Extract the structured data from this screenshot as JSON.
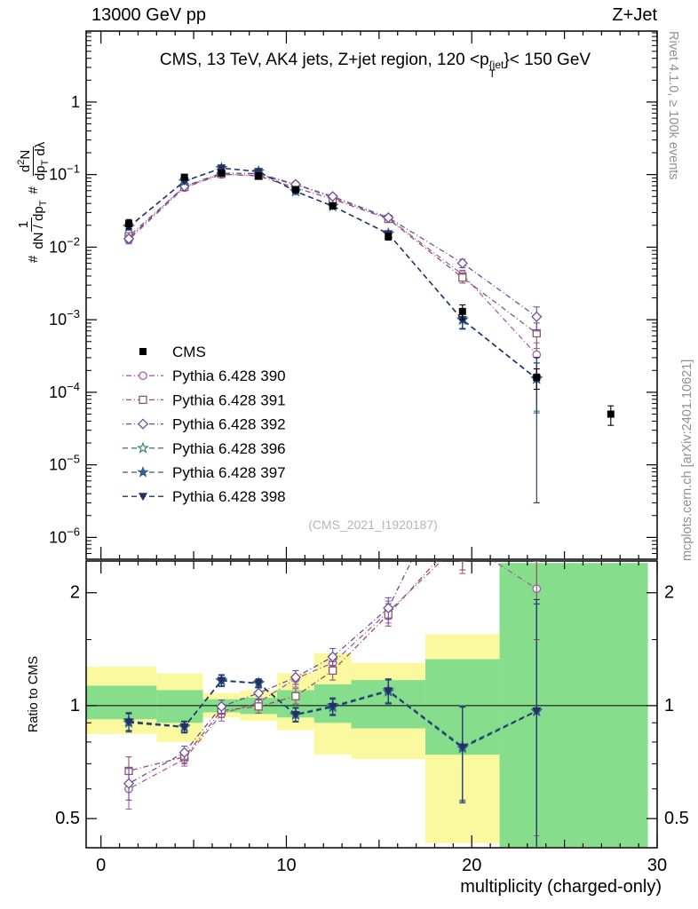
{
  "header": {
    "left": "13000 GeV pp",
    "right": "Z+Jet"
  },
  "labels": {
    "title_pre": "CMS, 13 TeV, AK4 jets, Z+jet region, 120 <p",
    "title_sup": "{jet",
    "title_sub": "T",
    "title_post": "}< 150 GeV",
    "y_hash1": "#",
    "y_f1_num": "1",
    "y_f1_den_a": "dN / dp",
    "y_f1_den_sub": "T",
    "y_hash2": "#",
    "y_f2_num_a": "d",
    "y_f2_num_sup": "2",
    "y_f2_num_b": "N",
    "y_f2_den_a": "dp",
    "y_f2_den_sub": "T",
    "y_f2_den_b": " dλ",
    "ratio_ylabel": "Ratio to CMS",
    "xlabel": "multiplicity (charged-only)",
    "watermark": "(CMS_2021_I1920187)",
    "rivet": "Rivet 4.1.0, ≥ 100k events",
    "mcplots": "mcplots.cern.ch [arXiv:2401.10621]"
  },
  "chart_data": {
    "type": "line",
    "title": "CMS, 13 TeV, AK4 jets, Z+jet region, 120 < pT{jet} < 150 GeV",
    "xlabel": "multiplicity (charged-only)",
    "ylabel": "# 1/(dN/dpT) d2N/(dpT dλ)",
    "ratio_ylabel": "Ratio to CMS",
    "xlim": [
      -0.8,
      30
    ],
    "ylim_main": [
      5e-07,
      9.5
    ],
    "ratio_lim": [
      0.418,
      2.43
    ],
    "x_ticks": [
      0,
      10,
      20,
      30
    ],
    "y_exponents": [
      0,
      -1,
      -2,
      -3,
      -4,
      -5,
      -6
    ],
    "ratio_ticks": [
      0.5,
      1,
      2
    ],
    "ratio_minor_ticks": [
      0.6,
      0.7,
      0.8,
      0.9,
      1.5
    ],
    "legend_position": "left-middle",
    "grid": false,
    "colors": {
      "band_yellow": "#fbf9a0",
      "band_green": "#86dd8c",
      "frame": "#000000"
    },
    "series": [
      {
        "name": "CMS",
        "color": "#000000",
        "marker": "square-filled",
        "dash": null,
        "x": [
          1.5,
          4.5,
          6.5,
          8.5,
          10.5,
          12.5,
          15.5,
          19.5,
          23.5,
          27.5
        ],
        "y": [
          0.021,
          0.092,
          0.105,
          0.096,
          0.062,
          0.037,
          0.014,
          0.0013,
          0.00016,
          5e-05
        ],
        "ey": [
          0.003,
          0.005,
          0.005,
          0.005,
          0.004,
          0.003,
          0.0015,
          0.0003,
          5e-05,
          1.5e-05
        ],
        "ratio": null,
        "rey": null
      },
      {
        "name": "Pythia 6.428 390",
        "color": "#a35fa3",
        "marker": "circle-open",
        "dash": "1 3 6 3",
        "x": [
          1.5,
          4.5,
          6.5,
          8.5,
          10.5,
          12.5,
          15.5,
          19.5,
          23.5
        ],
        "y": [
          0.0126,
          0.066,
          0.1,
          0.098,
          0.073,
          0.048,
          0.025,
          0.0042,
          0.00033
        ],
        "ey": [
          0.0015,
          0.003,
          0.004,
          0.004,
          0.003,
          0.0025,
          0.0015,
          0.0006,
          0.00015
        ],
        "ratio": [
          0.6,
          0.72,
          0.95,
          1.02,
          1.18,
          1.3,
          1.78,
          2.75,
          2.05
        ],
        "rey": [
          0.07,
          0.03,
          0.04,
          0.04,
          0.06,
          0.07,
          0.12,
          0.5,
          1.6
        ]
      },
      {
        "name": "Pythia 6.428 391",
        "color": "#8f5668",
        "marker": "square-open",
        "dash": "1 3 6 3",
        "x": [
          1.5,
          4.5,
          6.5,
          8.5,
          10.5,
          12.5,
          15.5,
          19.5,
          23.5
        ],
        "y": [
          0.0141,
          0.0675,
          0.102,
          0.0955,
          0.0655,
          0.046,
          0.0245,
          0.0038,
          0.00065
        ],
        "ey": [
          0.0015,
          0.003,
          0.004,
          0.004,
          0.003,
          0.0025,
          0.0015,
          0.0006,
          0.00025
        ],
        "ratio": [
          0.67,
          0.73,
          0.97,
          0.995,
          1.06,
          1.24,
          1.75,
          2.9,
          4.0
        ],
        "rey": [
          0.06,
          0.03,
          0.04,
          0.04,
          0.05,
          0.07,
          0.12,
          0.6,
          2.5
        ]
      },
      {
        "name": "Pythia 6.428 392",
        "color": "#6b4fa0",
        "marker": "diamond-open",
        "dash": "1 3 6 3",
        "x": [
          1.5,
          4.5,
          6.5,
          8.5,
          10.5,
          12.5,
          15.5,
          19.5,
          23.5
        ],
        "y": [
          0.0131,
          0.069,
          0.1045,
          0.1035,
          0.0735,
          0.05,
          0.0255,
          0.006,
          0.0011
        ],
        "ey": [
          0.0015,
          0.003,
          0.004,
          0.004,
          0.003,
          0.0025,
          0.0015,
          0.0008,
          0.0004
        ],
        "ratio": [
          0.62,
          0.75,
          0.995,
          1.08,
          1.19,
          1.35,
          1.82,
          4.6,
          6.9
        ],
        "rey": [
          0.06,
          0.03,
          0.04,
          0.04,
          0.05,
          0.07,
          0.12,
          0.9,
          3.5
        ]
      },
      {
        "name": "Pythia 6.428 396",
        "color": "#3d8080",
        "marker": "star-open",
        "dash": "6 4",
        "x": [
          1.5,
          4.5,
          6.5,
          8.5,
          10.5,
          12.5,
          15.5,
          19.5,
          23.5
        ],
        "y": [
          0.0191,
          0.081,
          0.1228,
          0.1104,
          0.0589,
          0.037,
          0.0154,
          0.00101,
          0.000155
        ],
        "ey": [
          0.0015,
          0.003,
          0.004,
          0.0035,
          0.0025,
          0.002,
          0.0012,
          0.00025,
          0.0001
        ],
        "ratio": [
          0.91,
          0.88,
          1.17,
          1.15,
          0.95,
          1.0,
          1.1,
          0.78,
          0.97
        ],
        "rey": [
          0.05,
          0.03,
          0.04,
          0.03,
          0.04,
          0.05,
          0.08,
          0.22,
          0.9
        ]
      },
      {
        "name": "Pythia 6.428 397",
        "color": "#33628c",
        "marker": "star-filled",
        "dash": "6 4",
        "x": [
          1.5,
          4.5,
          6.5,
          8.5,
          10.5,
          12.5,
          15.5,
          19.5,
          23.5
        ],
        "y": [
          0.0188,
          0.0805,
          0.1222,
          0.1099,
          0.0585,
          0.0366,
          0.0152,
          0.00099,
          0.000152
        ],
        "ey": [
          0.0015,
          0.003,
          0.004,
          0.0035,
          0.0025,
          0.002,
          0.0012,
          0.00025,
          0.0001
        ],
        "ratio": [
          0.9,
          0.875,
          1.164,
          1.145,
          0.944,
          0.99,
          1.09,
          0.77,
          0.965
        ],
        "rey": [
          0.05,
          0.03,
          0.04,
          0.03,
          0.04,
          0.05,
          0.08,
          0.22,
          0.9
        ]
      },
      {
        "name": "Pythia 6.428 398",
        "color": "#252f66",
        "marker": "triangle-down",
        "dash": "6 4",
        "x": [
          1.5,
          4.5,
          6.5,
          8.5,
          10.5,
          12.5,
          15.5,
          19.5,
          23.5
        ],
        "y": [
          0.019,
          0.0812,
          0.1231,
          0.1101,
          0.0587,
          0.0368,
          0.0153,
          0.001,
          0.000153
        ],
        "ey": [
          0.0015,
          0.003,
          0.004,
          0.0035,
          0.0025,
          0.002,
          0.0012,
          0.00025,
          0.00015
        ],
        "ratio": [
          0.905,
          0.878,
          1.167,
          1.147,
          0.946,
          0.995,
          1.095,
          0.775,
          0.968
        ],
        "rey": [
          0.05,
          0.03,
          0.04,
          0.03,
          0.04,
          0.05,
          0.08,
          0.22,
          0.95
        ]
      }
    ],
    "bands": [
      {
        "xlo": -0.8,
        "xhi": 3,
        "ylo_y": 0.84,
        "yhi_y": 1.27,
        "ylo_g": 0.92,
        "yhi_g": 1.13
      },
      {
        "xlo": 3,
        "xhi": 5.5,
        "ylo_y": 0.8,
        "yhi_y": 1.22,
        "ylo_g": 0.9,
        "yhi_g": 1.1
      },
      {
        "xlo": 5.5,
        "xhi": 7.5,
        "ylo_y": 0.93,
        "yhi_y": 1.08,
        "ylo_g": 0.96,
        "yhi_g": 1.04
      },
      {
        "xlo": 7.5,
        "xhi": 9.5,
        "ylo_y": 0.91,
        "yhi_y": 1.1,
        "ylo_g": 0.95,
        "yhi_g": 1.05
      },
      {
        "xlo": 9.5,
        "xhi": 11.5,
        "ylo_y": 0.86,
        "yhi_y": 1.22,
        "ylo_g": 0.93,
        "yhi_g": 1.1
      },
      {
        "xlo": 11.5,
        "xhi": 13.5,
        "ylo_y": 0.74,
        "yhi_y": 1.38,
        "ylo_g": 0.9,
        "yhi_g": 1.14
      },
      {
        "xlo": 13.5,
        "xhi": 17.5,
        "ylo_y": 0.72,
        "yhi_y": 1.3,
        "ylo_g": 0.87,
        "yhi_g": 1.17
      },
      {
        "xlo": 17.5,
        "xhi": 21.5,
        "ylo_y": 0.43,
        "yhi_y": 1.55,
        "ylo_g": 0.74,
        "yhi_g": 1.33
      },
      {
        "xlo": 21.5,
        "xhi": 29.5,
        "ylo_y": 0.4,
        "yhi_y": 2.4,
        "ylo_g": 0.42,
        "yhi_g": 2.4
      }
    ]
  }
}
